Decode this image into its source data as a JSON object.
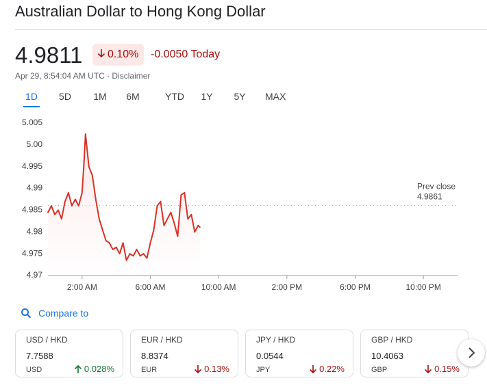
{
  "header": {
    "title": "Australian Dollar to Hong Kong Dollar"
  },
  "quote": {
    "price": "4.9811",
    "direction": "down",
    "change_percent": "0.10%",
    "change": "-0.0050",
    "period": "Today",
    "timestamp": "Apr 29, 8:54:04 AM UTC",
    "disclaimer": "Disclaimer"
  },
  "tabs": {
    "items": [
      "1D",
      "5D",
      "1M",
      "6M",
      "YTD",
      "1Y",
      "5Y",
      "MAX"
    ],
    "selected": 0
  },
  "chart_data": {
    "type": "line",
    "color": "#d93025",
    "x": [
      0,
      0.2,
      0.4,
      0.6,
      0.8,
      1.0,
      1.2,
      1.4,
      1.6,
      1.8,
      2.0,
      2.1,
      2.2,
      2.4,
      2.6,
      2.8,
      3.0,
      3.2,
      3.4,
      3.6,
      3.8,
      4.0,
      4.2,
      4.4,
      4.6,
      4.8,
      5.0,
      5.2,
      5.4,
      5.6,
      5.8,
      6.0,
      6.2,
      6.4,
      6.6,
      6.8,
      7.0,
      7.2,
      7.4,
      7.6,
      7.8,
      8.0,
      8.2,
      8.4,
      8.6,
      8.8,
      8.9
    ],
    "values": [
      4.9845,
      4.986,
      4.984,
      4.985,
      4.983,
      4.987,
      4.989,
      4.986,
      4.9875,
      4.986,
      4.989,
      4.995,
      5.0025,
      4.995,
      4.993,
      4.9875,
      4.983,
      4.9805,
      4.978,
      4.9775,
      4.976,
      4.9765,
      4.975,
      4.9775,
      4.9735,
      4.975,
      4.9745,
      4.976,
      4.9745,
      4.975,
      4.974,
      4.9775,
      4.9805,
      4.986,
      4.987,
      4.9815,
      4.983,
      4.9845,
      4.982,
      4.979,
      4.9885,
      4.989,
      4.983,
      4.984,
      4.98,
      4.9815,
      4.9811
    ],
    "xlim": [
      0,
      24
    ],
    "xticks": [
      {
        "value": 2,
        "label": "2:00 AM"
      },
      {
        "value": 6,
        "label": "6:00 AM"
      },
      {
        "value": 10,
        "label": "10:00 AM"
      },
      {
        "value": 14,
        "label": "2:00 PM"
      },
      {
        "value": 18,
        "label": "6:00 PM"
      },
      {
        "value": 22,
        "label": "10:00 PM"
      }
    ],
    "ylim": [
      4.97,
      5.005
    ],
    "yticks": [
      4.97,
      4.975,
      4.98,
      4.985,
      4.99,
      4.995,
      {
        "value": 5,
        "label": "5.00"
      },
      5.005
    ],
    "grid": false,
    "prev_close": {
      "label": "Prev close",
      "value": 4.9861
    }
  },
  "compare": {
    "label": "Compare to",
    "cards": [
      {
        "pair": "USD / HKD",
        "price": "7.7588",
        "code": "USD",
        "direction": "up",
        "change": "0.028%"
      },
      {
        "pair": "EUR / HKD",
        "price": "8.8374",
        "code": "EUR",
        "direction": "down",
        "change": "0.13%"
      },
      {
        "pair": "JPY / HKD",
        "price": "0.0544",
        "code": "JPY",
        "direction": "down",
        "change": "0.22%"
      },
      {
        "pair": "GBP / HKD",
        "price": "10.4063",
        "code": "GBP",
        "direction": "down",
        "change": "0.15%"
      }
    ]
  }
}
